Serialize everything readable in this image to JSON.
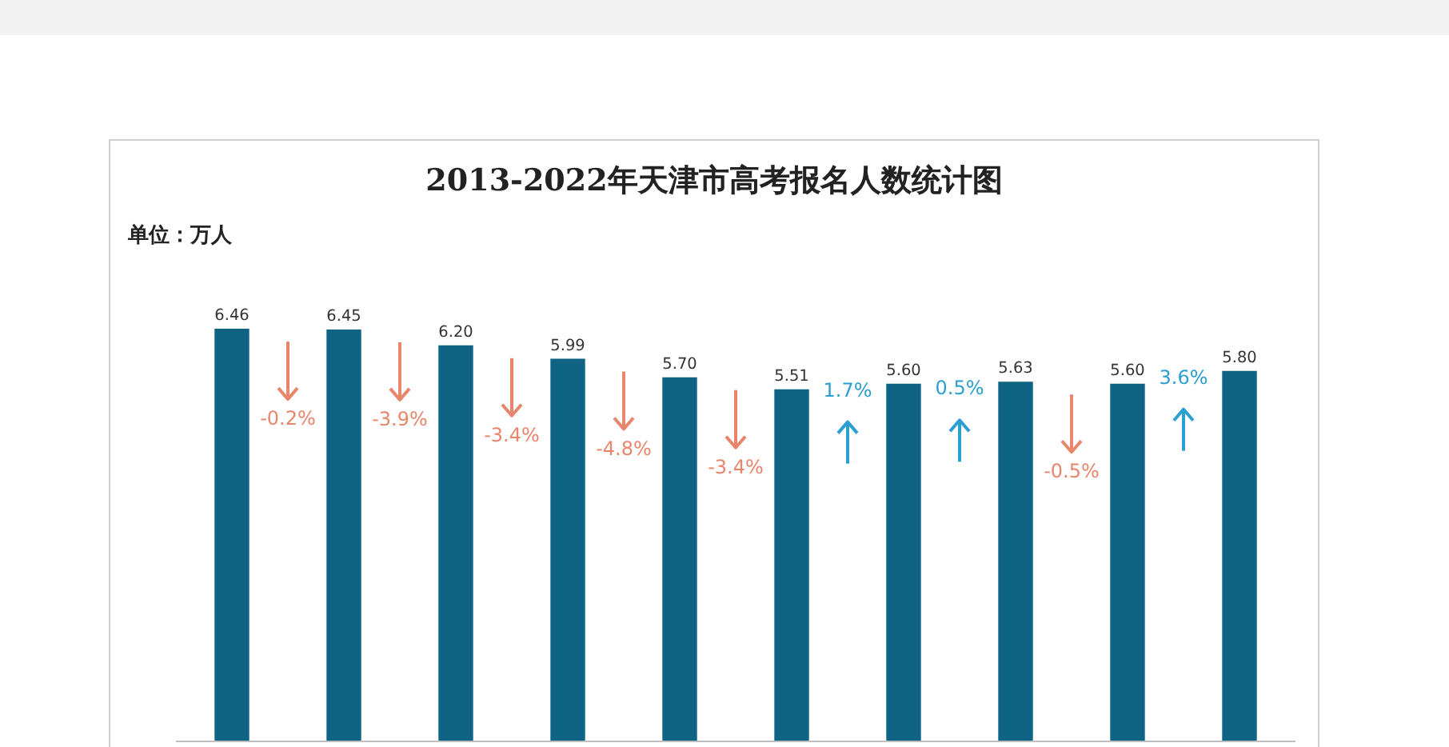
{
  "chart_data": {
    "type": "bar",
    "title": "2013-2022年天津市高考报名人数统计图",
    "subtitle": "单位：万人",
    "categories": [
      null,
      null,
      null,
      null,
      null,
      null,
      null,
      null,
      null,
      null
    ],
    "values": [
      6.46,
      6.45,
      6.2,
      5.99,
      5.7,
      5.51,
      5.6,
      5.63,
      5.6,
      5.8
    ],
    "value_labels": [
      "6.46",
      "6.45",
      "6.20",
      "5.99",
      "5.70",
      "5.51",
      "5.60",
      "5.63",
      "5.60",
      "5.80"
    ],
    "color": "#0f6483",
    "tick_labels": false,
    "annotations": [
      "-0.2%",
      "-3.9%",
      "-3.4%",
      "-4.8%",
      "-3.4%",
      "1.7%",
      "0.5%",
      "-0.5%",
      "3.6%"
    ]
  }
}
